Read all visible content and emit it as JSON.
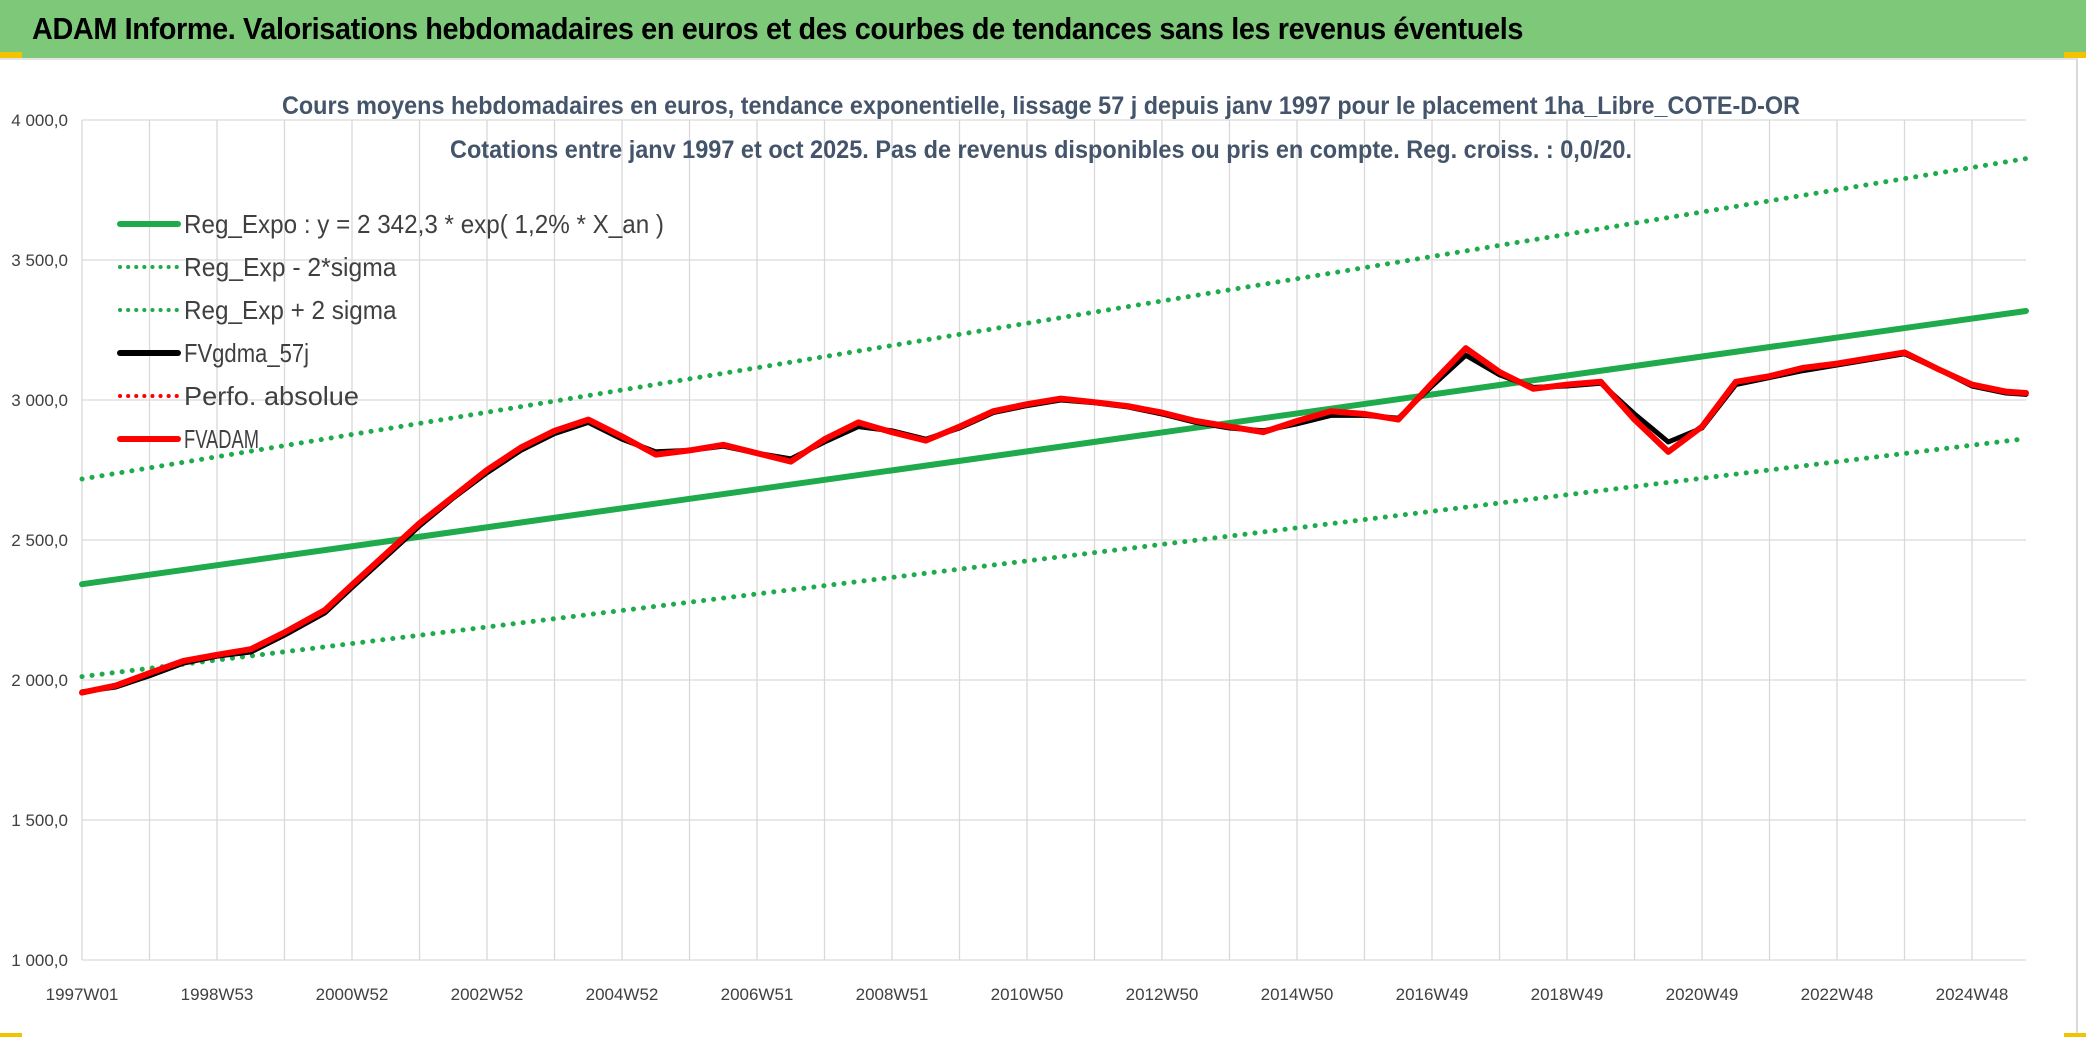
{
  "banner": {
    "title": "ADAM Informe. Valorisations hebdomadaires en euros et des courbes de tendances sans les revenus éventuels"
  },
  "colors": {
    "banner_bg": "#7ec87a",
    "trend": "#1faa4b",
    "fv": "#ff0000",
    "gdma": "#000000",
    "grid": "#d9d9d9"
  },
  "chart_data": {
    "type": "line",
    "title": "Cours moyens hebdomadaires en euros, tendance exponentielle, lissage 57 j depuis janv 1997 pour le placement 1ha_Libre_COTE-D-OR",
    "subtitle": "Cotations entre janv 1997 et oct 2025. Pas de revenus disponibles ou pris en compte. Reg. croiss. : 0,0/20.",
    "xlabel": "",
    "ylabel": "",
    "ylim": [
      1000,
      4000
    ],
    "xlim": [
      1997.0,
      2025.8
    ],
    "y_ticks": [
      1000,
      1500,
      2000,
      2500,
      3000,
      3500,
      4000
    ],
    "y_tick_labels": [
      "1 000,0",
      "1 500,0",
      "2 000,0",
      "2 500,0",
      "3 000,0",
      "3 500,0",
      "4 000,0"
    ],
    "x_tick_positions": [
      1997.0,
      1999.0,
      2001.0,
      2003.0,
      2005.0,
      2007.0,
      2009.0,
      2011.0,
      2013.0,
      2015.0,
      2017.0,
      2019.0,
      2021.0,
      2023.0,
      2025.0
    ],
    "x_tick_labels": [
      "1997W01",
      "1998W53",
      "2000W52",
      "2002W52",
      "2004W52",
      "2006W51",
      "2008W51",
      "2010W50",
      "2012W50",
      "2014W50",
      "2016W49",
      "2018W49",
      "2020W49",
      "2022W48",
      "2024W48"
    ],
    "grid": true,
    "legend_position": "top-left",
    "series": [
      {
        "name": "Reg_Expo : y = 2 342,3 * exp( 1,2% *  X_an )",
        "style": "solid",
        "color": "#1faa4b",
        "x": [
          1997.0,
          2025.8
        ],
        "values": [
          2342.3,
          3318
        ]
      },
      {
        "name": "Reg_Exp - 2*sigma",
        "style": "dotted",
        "color": "#1faa4b",
        "x": [
          1997.0,
          2025.8
        ],
        "values": [
          2012,
          2862
        ]
      },
      {
        "name": "Reg_Exp + 2 sigma",
        "style": "dotted",
        "color": "#1faa4b",
        "x": [
          1997.0,
          2025.8
        ],
        "values": [
          2718,
          3862
        ]
      },
      {
        "name": "FVgdma_57j",
        "style": "solid",
        "color": "#000000",
        "x": [
          1997.0,
          1997.5,
          1998.0,
          1998.5,
          1999.0,
          1999.5,
          2000.0,
          2000.6,
          2001.0,
          2001.5,
          2002.0,
          2002.5,
          2003.0,
          2003.5,
          2004.0,
          2004.5,
          2005.0,
          2005.5,
          2006.0,
          2006.5,
          2007.0,
          2007.5,
          2008.0,
          2008.5,
          2009.0,
          2009.5,
          2010.0,
          2010.5,
          2011.0,
          2011.5,
          2012.0,
          2012.5,
          2013.0,
          2013.5,
          2014.0,
          2014.5,
          2015.0,
          2015.5,
          2016.0,
          2016.5,
          2017.0,
          2017.5,
          2018.0,
          2018.5,
          2019.0,
          2019.5,
          2020.0,
          2020.5,
          2021.0,
          2021.5,
          2022.0,
          2022.5,
          2023.0,
          2023.5,
          2024.0,
          2024.5,
          2025.0,
          2025.5,
          2025.8
        ],
        "values": [
          1958,
          1975,
          2015,
          2060,
          2085,
          2100,
          2160,
          2240,
          2330,
          2440,
          2550,
          2650,
          2740,
          2820,
          2880,
          2920,
          2860,
          2815,
          2820,
          2835,
          2810,
          2790,
          2850,
          2905,
          2890,
          2860,
          2900,
          2955,
          2980,
          3000,
          2990,
          2975,
          2950,
          2920,
          2900,
          2890,
          2915,
          2945,
          2945,
          2935,
          3050,
          3160,
          3090,
          3045,
          3050,
          3060,
          2950,
          2850,
          2900,
          3055,
          3080,
          3105,
          3125,
          3145,
          3165,
          3110,
          3050,
          3025,
          3020
        ]
      },
      {
        "name": "Perfo. absolue",
        "style": "dotted",
        "color": "#ff0000",
        "x": [],
        "values": []
      },
      {
        "name": "FVADAM",
        "style": "solid",
        "color": "#ff0000",
        "x": [
          1997.0,
          1997.5,
          1998.0,
          1998.5,
          1999.0,
          1999.5,
          2000.0,
          2000.6,
          2001.0,
          2001.5,
          2002.0,
          2002.5,
          2003.0,
          2003.5,
          2004.0,
          2004.5,
          2005.0,
          2005.5,
          2006.0,
          2006.5,
          2007.0,
          2007.5,
          2008.0,
          2008.5,
          2009.0,
          2009.5,
          2010.0,
          2010.5,
          2011.0,
          2011.5,
          2012.0,
          2012.5,
          2013.0,
          2013.5,
          2014.0,
          2014.5,
          2015.0,
          2015.5,
          2016.0,
          2016.5,
          2017.0,
          2017.5,
          2018.0,
          2018.5,
          2019.0,
          2019.5,
          2020.0,
          2020.5,
          2021.0,
          2021.5,
          2022.0,
          2022.5,
          2023.0,
          2023.5,
          2024.0,
          2024.5,
          2025.0,
          2025.5,
          2025.8
        ],
        "values": [
          1955,
          1980,
          2025,
          2068,
          2090,
          2110,
          2170,
          2250,
          2340,
          2450,
          2560,
          2655,
          2750,
          2830,
          2890,
          2930,
          2870,
          2805,
          2820,
          2840,
          2810,
          2780,
          2860,
          2920,
          2885,
          2855,
          2905,
          2960,
          2985,
          3005,
          2992,
          2978,
          2955,
          2925,
          2905,
          2885,
          2925,
          2960,
          2950,
          2930,
          3060,
          3185,
          3100,
          3040,
          3055,
          3065,
          2930,
          2815,
          2905,
          3065,
          3085,
          3115,
          3130,
          3150,
          3170,
          3110,
          3055,
          3030,
          3025
        ]
      }
    ]
  }
}
